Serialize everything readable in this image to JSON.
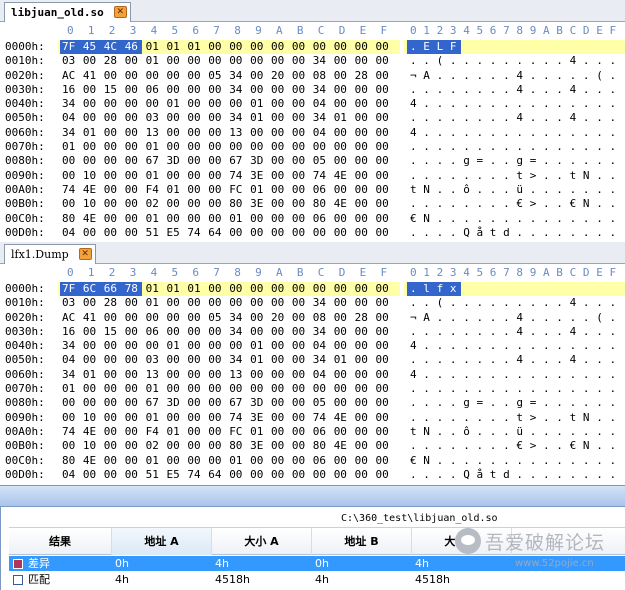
{
  "pane1": {
    "tab_label": "libjuan_old.so",
    "close_icon": "close-icon",
    "highlight_rows": [
      0
    ],
    "sel_bytes": 4,
    "rows": [
      {
        "addr": "0000h:",
        "hex": [
          "7F",
          "45",
          "4C",
          "46",
          "01",
          "01",
          "01",
          "00",
          "00",
          "00",
          "00",
          "00",
          "00",
          "00",
          "00",
          "00"
        ],
        "ascii": ". E L F"
      },
      {
        "addr": "0010h:",
        "hex": [
          "03",
          "00",
          "28",
          "00",
          "01",
          "00",
          "00",
          "00",
          "00",
          "00",
          "00",
          "00",
          "34",
          "00",
          "00",
          "00"
        ],
        "ascii": ". . ( . . . . . . . . . 4 . . ."
      },
      {
        "addr": "0020h:",
        "hex": [
          "AC",
          "41",
          "00",
          "00",
          "00",
          "00",
          "00",
          "05",
          "34",
          "00",
          "20",
          "00",
          "08",
          "00",
          "28",
          "00"
        ],
        "ascii": "¬ A . . . . . . 4 . . . . . ( ."
      },
      {
        "addr": "0030h:",
        "hex": [
          "16",
          "00",
          "15",
          "00",
          "06",
          "00",
          "00",
          "00",
          "34",
          "00",
          "00",
          "00",
          "34",
          "00",
          "00",
          "00"
        ],
        "ascii": ". . . . . . . . 4 . . . 4 . . ."
      },
      {
        "addr": "0040h:",
        "hex": [
          "34",
          "00",
          "00",
          "00",
          "00",
          "01",
          "00",
          "00",
          "00",
          "01",
          "00",
          "00",
          "04",
          "00",
          "00",
          "00"
        ],
        "ascii": "4 . . . . . . . . . . . . . . ."
      },
      {
        "addr": "0050h:",
        "hex": [
          "04",
          "00",
          "00",
          "00",
          "03",
          "00",
          "00",
          "00",
          "34",
          "01",
          "00",
          "00",
          "34",
          "01",
          "00",
          "00"
        ],
        "ascii": ". . . . . . . . 4 . . . 4 . . ."
      },
      {
        "addr": "0060h:",
        "hex": [
          "34",
          "01",
          "00",
          "00",
          "13",
          "00",
          "00",
          "00",
          "13",
          "00",
          "00",
          "00",
          "04",
          "00",
          "00",
          "00"
        ],
        "ascii": "4 . . . . . . . . . . . . . . ."
      },
      {
        "addr": "0070h:",
        "hex": [
          "01",
          "00",
          "00",
          "00",
          "01",
          "00",
          "00",
          "00",
          "00",
          "00",
          "00",
          "00",
          "00",
          "00",
          "00",
          "00"
        ],
        "ascii": ". . . . . . . . . . . . . . . ."
      },
      {
        "addr": "0080h:",
        "hex": [
          "00",
          "00",
          "00",
          "00",
          "67",
          "3D",
          "00",
          "00",
          "67",
          "3D",
          "00",
          "00",
          "05",
          "00",
          "00",
          "00"
        ],
        "ascii": ". . . . g = . . g = . . . . . ."
      },
      {
        "addr": "0090h:",
        "hex": [
          "00",
          "10",
          "00",
          "00",
          "01",
          "00",
          "00",
          "00",
          "74",
          "3E",
          "00",
          "00",
          "74",
          "4E",
          "00",
          "00"
        ],
        "ascii": ". . . . . . . . t > . . t N . ."
      },
      {
        "addr": "00A0h:",
        "hex": [
          "74",
          "4E",
          "00",
          "00",
          "F4",
          "01",
          "00",
          "00",
          "FC",
          "01",
          "00",
          "00",
          "06",
          "00",
          "00",
          "00"
        ],
        "ascii": "t N . . ô . . . ü . . . . . . ."
      },
      {
        "addr": "00B0h:",
        "hex": [
          "00",
          "10",
          "00",
          "00",
          "02",
          "00",
          "00",
          "00",
          "80",
          "3E",
          "00",
          "00",
          "80",
          "4E",
          "00",
          "00"
        ],
        "ascii": ". . . . . . . . € > . . € N . ."
      },
      {
        "addr": "00C0h:",
        "hex": [
          "80",
          "4E",
          "00",
          "00",
          "01",
          "00",
          "00",
          "00",
          "01",
          "00",
          "00",
          "00",
          "06",
          "00",
          "00",
          "00"
        ],
        "ascii": "€ N . . . . . . . . . . . . . ."
      },
      {
        "addr": "00D0h:",
        "hex": [
          "04",
          "00",
          "00",
          "00",
          "51",
          "E5",
          "74",
          "64",
          "00",
          "00",
          "00",
          "00",
          "00",
          "00",
          "00",
          "00"
        ],
        "ascii": ". . . . Q å t d . . . . . . . ."
      }
    ]
  },
  "pane2": {
    "tab_label": "lfx1.Dump",
    "close_icon": "close-icon",
    "highlight_rows": [
      0
    ],
    "sel_bytes": 4,
    "rows": [
      {
        "addr": "0000h:",
        "hex": [
          "7F",
          "6C",
          "66",
          "78",
          "01",
          "01",
          "01",
          "00",
          "00",
          "00",
          "00",
          "00",
          "00",
          "00",
          "00",
          "00"
        ],
        "ascii": ". l f x"
      },
      {
        "addr": "0010h:",
        "hex": [
          "03",
          "00",
          "28",
          "00",
          "01",
          "00",
          "00",
          "00",
          "00",
          "00",
          "00",
          "00",
          "34",
          "00",
          "00",
          "00"
        ],
        "ascii": ". . ( . . . . . . . . . 4 . . ."
      },
      {
        "addr": "0020h:",
        "hex": [
          "AC",
          "41",
          "00",
          "00",
          "00",
          "00",
          "00",
          "05",
          "34",
          "00",
          "20",
          "00",
          "08",
          "00",
          "28",
          "00"
        ],
        "ascii": "¬ A . . . . . . 4 . . . . . ( ."
      },
      {
        "addr": "0030h:",
        "hex": [
          "16",
          "00",
          "15",
          "00",
          "06",
          "00",
          "00",
          "00",
          "34",
          "00",
          "00",
          "00",
          "34",
          "00",
          "00",
          "00"
        ],
        "ascii": ". . . . . . . . 4 . . . 4 . . ."
      },
      {
        "addr": "0040h:",
        "hex": [
          "34",
          "00",
          "00",
          "00",
          "00",
          "01",
          "00",
          "00",
          "00",
          "01",
          "00",
          "00",
          "04",
          "00",
          "00",
          "00"
        ],
        "ascii": "4 . . . . . . . . . . . . . . ."
      },
      {
        "addr": "0050h:",
        "hex": [
          "04",
          "00",
          "00",
          "00",
          "03",
          "00",
          "00",
          "00",
          "34",
          "01",
          "00",
          "00",
          "34",
          "01",
          "00",
          "00"
        ],
        "ascii": ". . . . . . . . 4 . . . 4 . . ."
      },
      {
        "addr": "0060h:",
        "hex": [
          "34",
          "01",
          "00",
          "00",
          "13",
          "00",
          "00",
          "00",
          "13",
          "00",
          "00",
          "00",
          "04",
          "00",
          "00",
          "00"
        ],
        "ascii": "4 . . . . . . . . . . . . . . ."
      },
      {
        "addr": "0070h:",
        "hex": [
          "01",
          "00",
          "00",
          "00",
          "01",
          "00",
          "00",
          "00",
          "00",
          "00",
          "00",
          "00",
          "00",
          "00",
          "00",
          "00"
        ],
        "ascii": ". . . . . . . . . . . . . . . ."
      },
      {
        "addr": "0080h:",
        "hex": [
          "00",
          "00",
          "00",
          "00",
          "67",
          "3D",
          "00",
          "00",
          "67",
          "3D",
          "00",
          "00",
          "05",
          "00",
          "00",
          "00"
        ],
        "ascii": ". . . . g = . . g = . . . . . ."
      },
      {
        "addr": "0090h:",
        "hex": [
          "00",
          "10",
          "00",
          "00",
          "01",
          "00",
          "00",
          "00",
          "74",
          "3E",
          "00",
          "00",
          "74",
          "4E",
          "00",
          "00"
        ],
        "ascii": ". . . . . . . . t > . . t N . ."
      },
      {
        "addr": "00A0h:",
        "hex": [
          "74",
          "4E",
          "00",
          "00",
          "F4",
          "01",
          "00",
          "00",
          "FC",
          "01",
          "00",
          "00",
          "06",
          "00",
          "00",
          "00"
        ],
        "ascii": "t N . . ô . . . ü . . . . . . ."
      },
      {
        "addr": "00B0h:",
        "hex": [
          "00",
          "10",
          "00",
          "00",
          "02",
          "00",
          "00",
          "00",
          "80",
          "3E",
          "00",
          "00",
          "80",
          "4E",
          "00",
          "00"
        ],
        "ascii": ". . . . . . . . € > . . € N . ."
      },
      {
        "addr": "00C0h:",
        "hex": [
          "80",
          "4E",
          "00",
          "00",
          "01",
          "00",
          "00",
          "00",
          "01",
          "00",
          "00",
          "00",
          "06",
          "00",
          "00",
          "00"
        ],
        "ascii": "€ N . . . . . . . . . . . . . ."
      },
      {
        "addr": "00D0h:",
        "hex": [
          "04",
          "00",
          "00",
          "00",
          "51",
          "E5",
          "74",
          "64",
          "00",
          "00",
          "00",
          "00",
          "00",
          "00",
          "00",
          "00"
        ],
        "ascii": ". . . . Q å t d . . . . . . . ."
      }
    ]
  },
  "column_header": {
    "hex_digits": [
      "0",
      "1",
      "2",
      "3",
      "4",
      "5",
      "6",
      "7",
      "8",
      "9",
      "A",
      "B",
      "C",
      "D",
      "E",
      "F"
    ],
    "ascii_digits": "0123456789ABCDEF"
  },
  "results": {
    "path": "C:\\360_test\\libjuan_old.so",
    "columns": [
      "结果",
      "地址 A",
      "大小 A",
      "地址 B",
      "大小 B"
    ],
    "rows": [
      {
        "result": "差异",
        "addr_a": "0h",
        "size_a": "4h",
        "addr_b": "0h",
        "size_b": "4h",
        "selected": true,
        "icon": "diff-icon"
      },
      {
        "result": "匹配",
        "addr_a": "4h",
        "size_a": "4518h",
        "addr_b": "4h",
        "size_b": "4518h",
        "selected": false,
        "icon": "match-icon"
      }
    ]
  },
  "watermark": {
    "title": "吾爱破解论坛",
    "subtitle": "www.52pojie.cn"
  },
  "colors": {
    "selection": "#3366cc",
    "row_highlight": "#ffffa8",
    "header_digits": "#6b8bc0",
    "selected_row": "#3399ff"
  }
}
